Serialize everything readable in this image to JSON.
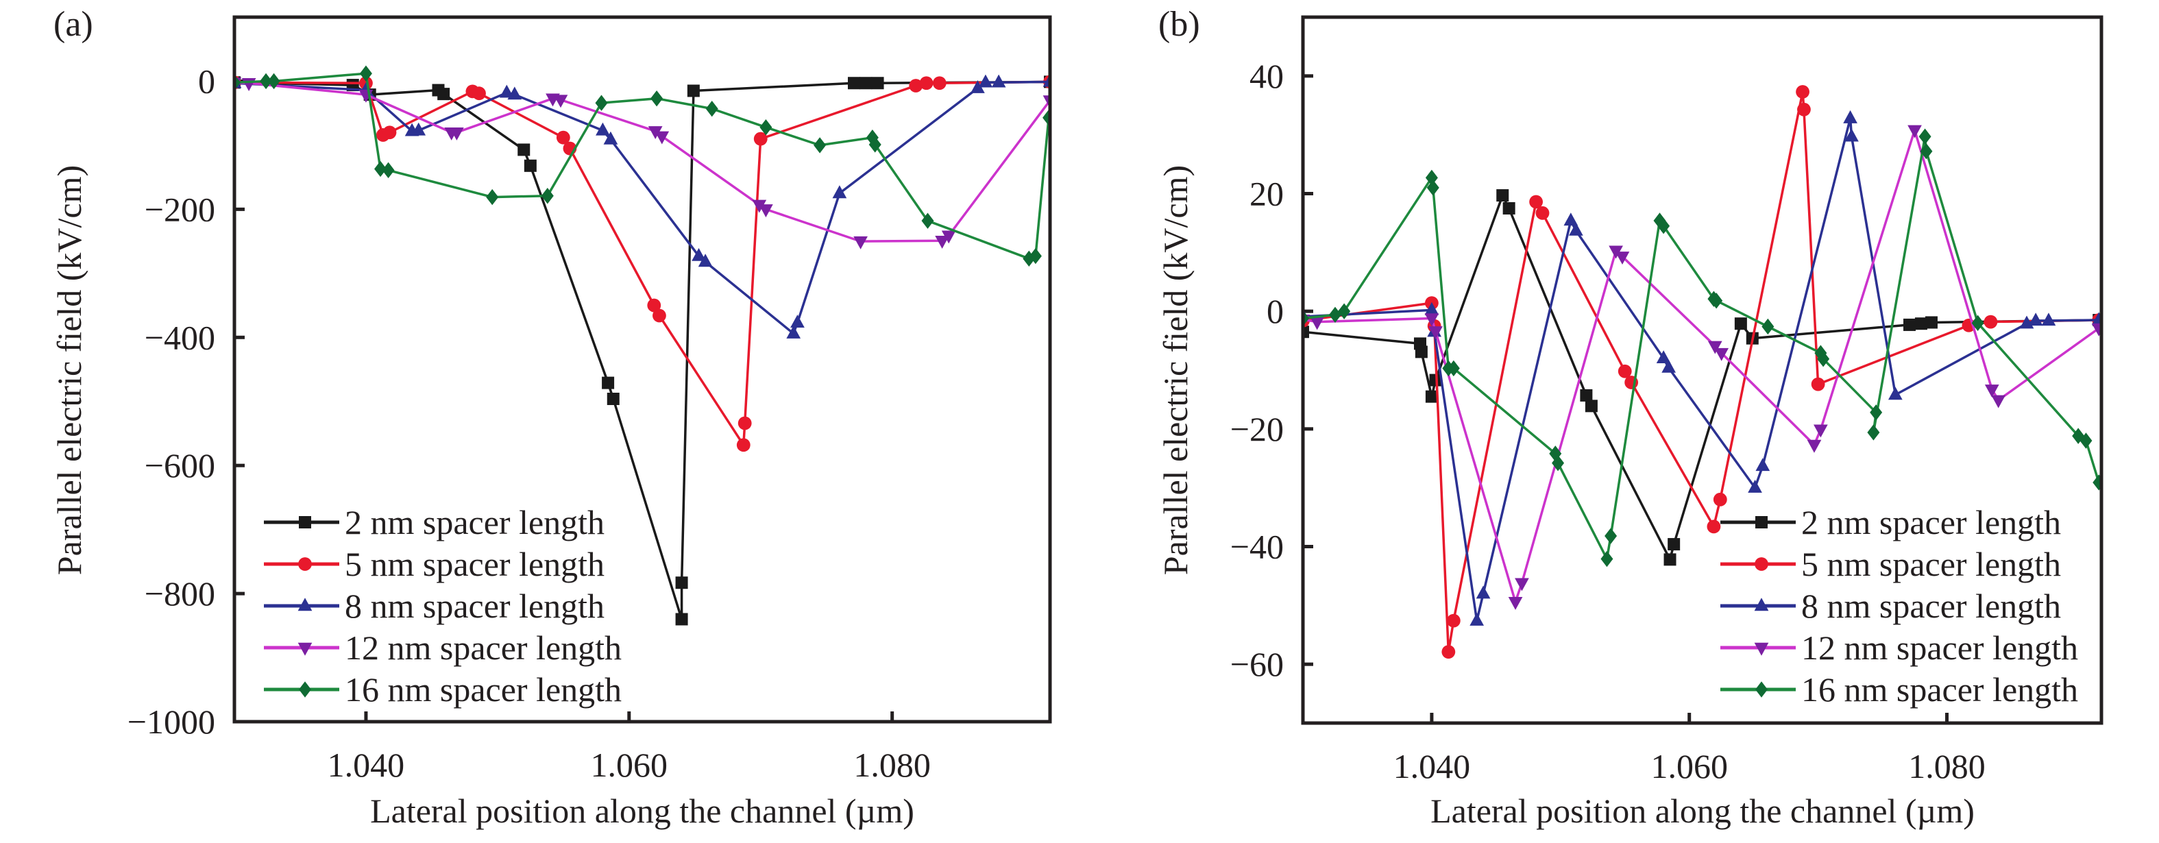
{
  "chart_data": [
    {
      "type": "line",
      "panel_label": "(a)",
      "title": "",
      "xlabel": "Lateral position along the channel (µm)",
      "ylabel": "Parallel electric field (kV/cm)",
      "xlim": [
        1.03,
        1.092
      ],
      "ylim": [
        -1000,
        100
      ],
      "xticks": [
        1.04,
        1.06,
        1.08
      ],
      "xtick_labels": [
        "1.040",
        "1.060",
        "1.080"
      ],
      "yticks": [
        0,
        -200,
        -400,
        -600,
        -800,
        -1000
      ],
      "ytick_labels": [
        "0",
        "−200",
        "−400",
        "−600",
        "−800",
        "−1000"
      ],
      "grid": false,
      "legend_position": "bottom-left",
      "series": [
        {
          "name": "2 nm spacer length",
          "color": "#1a1a1a",
          "marker": "square",
          "x": [
            1.03,
            1.039,
            1.0403,
            1.0455,
            1.0459,
            1.052,
            1.0525,
            1.0584,
            1.0588,
            1.064,
            1.064,
            1.0649,
            1.0771,
            1.078,
            1.0789,
            1.092
          ],
          "y": [
            -2,
            -6,
            -21,
            -14,
            -20,
            -107,
            -132,
            -471,
            -496,
            -840,
            -783,
            -15,
            -3,
            -3,
            -3,
            -1
          ]
        },
        {
          "name": "5 nm spacer length",
          "color": "#e8192c",
          "marker": "circle",
          "x": [
            1.03,
            1.04,
            1.0413,
            1.0418,
            1.0481,
            1.0486,
            1.055,
            1.0555,
            1.0619,
            1.0623,
            1.0687,
            1.0688,
            1.07,
            1.0818,
            1.0826,
            1.0836,
            1.092
          ],
          "y": [
            -2,
            -3,
            -84,
            -80,
            -16,
            -19,
            -88,
            -105,
            -350,
            -366,
            -568,
            -534,
            -90,
            -7,
            -3,
            -3,
            -1
          ]
        },
        {
          "name": "8 nm spacer length",
          "color": "#2b3192",
          "marker": "triangle-up",
          "x": [
            1.03,
            1.04,
            1.0435,
            1.044,
            1.0507,
            1.0513,
            1.058,
            1.0586,
            1.0653,
            1.0658,
            1.0725,
            1.0728,
            1.076,
            1.0865,
            1.0871,
            1.0881,
            1.092
          ],
          "y": [
            -3,
            -14,
            -78,
            -77,
            -18,
            -21,
            -77,
            -91,
            -273,
            -282,
            -394,
            -377,
            -175,
            -11,
            -2,
            -2,
            -1
          ]
        },
        {
          "name": "12 nm spacer length",
          "color": "#cc33cc",
          "marker": "triangle-down",
          "x": [
            1.03,
            1.0311,
            1.04,
            1.0465,
            1.0469,
            1.0542,
            1.0548,
            1.062,
            1.0625,
            1.0699,
            1.0704,
            1.0776,
            1.0838,
            1.0843,
            1.092
          ],
          "y": [
            -2,
            -3,
            -21,
            -80,
            -80,
            -27,
            -29,
            -78,
            -86,
            -193,
            -200,
            -250,
            -249,
            -241,
            -30
          ]
        },
        {
          "name": "16 nm spacer length",
          "color": "#1e8a3e",
          "marker": "diamond",
          "x": [
            1.03,
            1.0324,
            1.033,
            1.04,
            1.0411,
            1.0417,
            1.0496,
            1.0538,
            1.0579,
            1.0621,
            1.0663,
            1.0704,
            1.0745,
            1.0785,
            1.0787,
            1.0827,
            1.0904,
            1.0909,
            1.0919
          ],
          "y": [
            -2,
            0,
            0,
            12,
            -137,
            -139,
            -181,
            -179,
            -34,
            -27,
            -43,
            -72,
            -100,
            -88,
            -99,
            -218,
            -277,
            -273,
            -57
          ]
        }
      ]
    },
    {
      "type": "line",
      "panel_label": "(b)",
      "title": "",
      "xlabel": "Lateral position along the channel (µm)",
      "ylabel": "Parallel electric field (kV/cm)",
      "xlim": [
        1.03,
        1.092
      ],
      "ylim": [
        -70,
        50
      ],
      "xticks": [
        1.04,
        1.06,
        1.08
      ],
      "xtick_labels": [
        "1.040",
        "1.060",
        "1.080"
      ],
      "yticks": [
        40,
        20,
        0,
        -20,
        -40,
        -60
      ],
      "ytick_labels": [
        "40",
        "20",
        "0",
        "−20",
        "−40",
        "−60"
      ],
      "grid": false,
      "legend_position": "bottom-right",
      "series": [
        {
          "name": "2 nm spacer length",
          "color": "#1a1a1a",
          "marker": "square",
          "x": [
            1.03,
            1.0391,
            1.0392,
            1.04,
            1.0403,
            1.0455,
            1.046,
            1.052,
            1.0524,
            1.0585,
            1.0588,
            1.064,
            1.0649,
            1.0771,
            1.078,
            1.0788,
            1.0918
          ],
          "y": [
            -3.5,
            -5.5,
            -6.9,
            -14.5,
            -11.7,
            19.7,
            17.5,
            -14.3,
            -16.1,
            -42.2,
            -39.6,
            -2.1,
            -4.6,
            -2.3,
            -2.1,
            -1.9,
            -1.5
          ]
        },
        {
          "name": "5 nm spacer length",
          "color": "#e8192c",
          "marker": "circle",
          "x": [
            1.03,
            1.04,
            1.0402,
            1.0413,
            1.0417,
            1.0481,
            1.0486,
            1.055,
            1.0555,
            1.0619,
            1.0624,
            1.0688,
            1.0689,
            1.07,
            1.0817,
            1.0834,
            1.0918
          ],
          "y": [
            -1.6,
            1.4,
            -2.5,
            -57.9,
            -52.6,
            18.6,
            16.7,
            -10.2,
            -12.1,
            -36.6,
            -32.0,
            37.3,
            34.3,
            -12.4,
            -2.4,
            -1.8,
            -1.5
          ]
        },
        {
          "name": "8 nm spacer length",
          "color": "#2b3192",
          "marker": "triangle-up",
          "x": [
            1.03,
            1.04,
            1.0402,
            1.0435,
            1.044,
            1.0508,
            1.0512,
            1.058,
            1.0584,
            1.0651,
            1.0657,
            1.0725,
            1.0726,
            1.076,
            1.0862,
            1.0869,
            1.0879,
            1.0918
          ],
          "y": [
            -0.9,
            0.2,
            -3.5,
            -52.6,
            -48.0,
            15.4,
            13.7,
            -8.0,
            -9.6,
            -30.0,
            -26.3,
            32.8,
            29.7,
            -14.2,
            -2.1,
            -1.6,
            -1.6,
            -1.5
          ]
        },
        {
          "name": "12 nm spacer length",
          "color": "#cc33cc",
          "marker": "triangle-down",
          "x": [
            1.03,
            1.0311,
            1.04,
            1.0403,
            1.0465,
            1.047,
            1.0543,
            1.0548,
            1.062,
            1.0625,
            1.0697,
            1.0702,
            1.0775,
            1.0835,
            1.084,
            1.0918
          ],
          "y": [
            -1.4,
            -1.8,
            -1.2,
            -3.4,
            -49.4,
            -46.2,
            10.3,
            9.3,
            -5.9,
            -7.1,
            -22.7,
            -20.1,
            30.8,
            -13.3,
            -15.1,
            -2.9
          ]
        },
        {
          "name": "16 nm spacer length",
          "color": "#1e8a3e",
          "marker": "diamond",
          "x": [
            1.03,
            1.0325,
            1.0332,
            1.04,
            1.0401,
            1.0413,
            1.0417,
            1.0496,
            1.0498,
            1.0536,
            1.0539,
            1.0577,
            1.058,
            1.0619,
            1.0621,
            1.0661,
            1.0702,
            1.0704,
            1.0745,
            1.0743,
            1.0783,
            1.0784,
            1.0824,
            1.0902,
            1.0908,
            1.0918
          ],
          "y": [
            -1.2,
            -0.6,
            0.0,
            22.7,
            21.0,
            -9.7,
            -9.7,
            -24.2,
            -25.8,
            -42.1,
            -38.2,
            15.4,
            14.5,
            2.1,
            1.8,
            -2.6,
            -7.1,
            -8.1,
            -17.2,
            -20.6,
            29.7,
            27.2,
            -2.0,
            -21.2,
            -22.0,
            -29.1
          ]
        }
      ]
    }
  ]
}
